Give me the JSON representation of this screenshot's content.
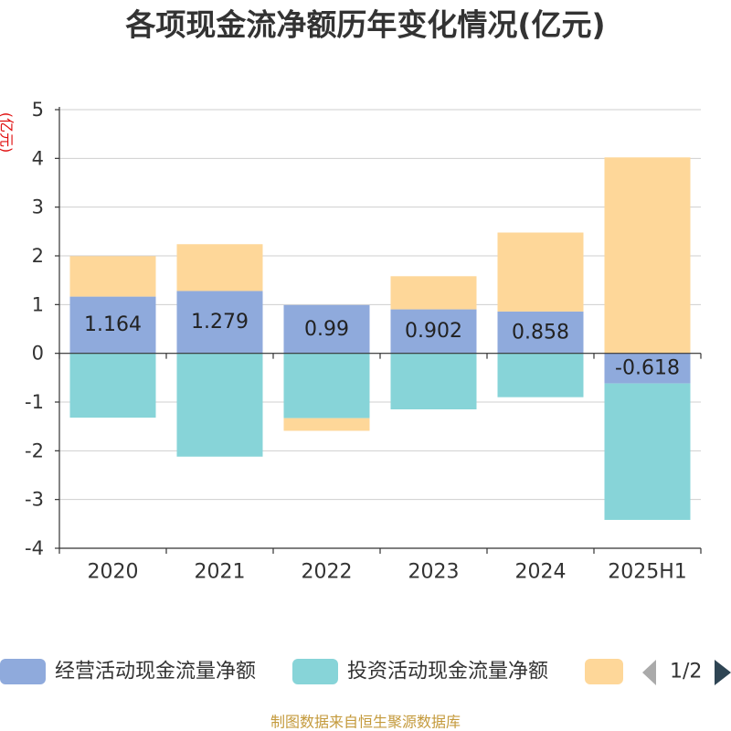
{
  "chart_data": {
    "type": "bar",
    "stacked": true,
    "title": "各项现金流净额历年变化情况(亿元)",
    "ylabel": "(亿元)",
    "categories": [
      "2020",
      "2021",
      "2022",
      "2023",
      "2024",
      "2025H1"
    ],
    "ylim": [
      -4,
      5
    ],
    "yticks": [
      -4,
      -3,
      -2,
      -1,
      0,
      1,
      2,
      3,
      4,
      5
    ],
    "grid": true,
    "legend_position": "bottom",
    "series": [
      {
        "name": "经营活动现金流量净额",
        "color": "#8faadc",
        "data_labels": true,
        "values": [
          1.164,
          1.279,
          0.99,
          0.902,
          0.858,
          -0.618
        ]
      },
      {
        "name": "投资活动现金流量净额",
        "color": "#87d4d8",
        "data_labels": false,
        "values": [
          -1.32,
          -2.12,
          -1.33,
          -1.15,
          -0.9,
          -2.8
        ]
      },
      {
        "name": "",
        "color": "#fed799",
        "data_labels": false,
        "values": [
          0.83,
          0.96,
          -0.26,
          0.68,
          1.62,
          4.02
        ]
      }
    ]
  },
  "legend": {
    "page_indicator": "1/2"
  },
  "footer": "制图数据来自恒生聚源数据库"
}
